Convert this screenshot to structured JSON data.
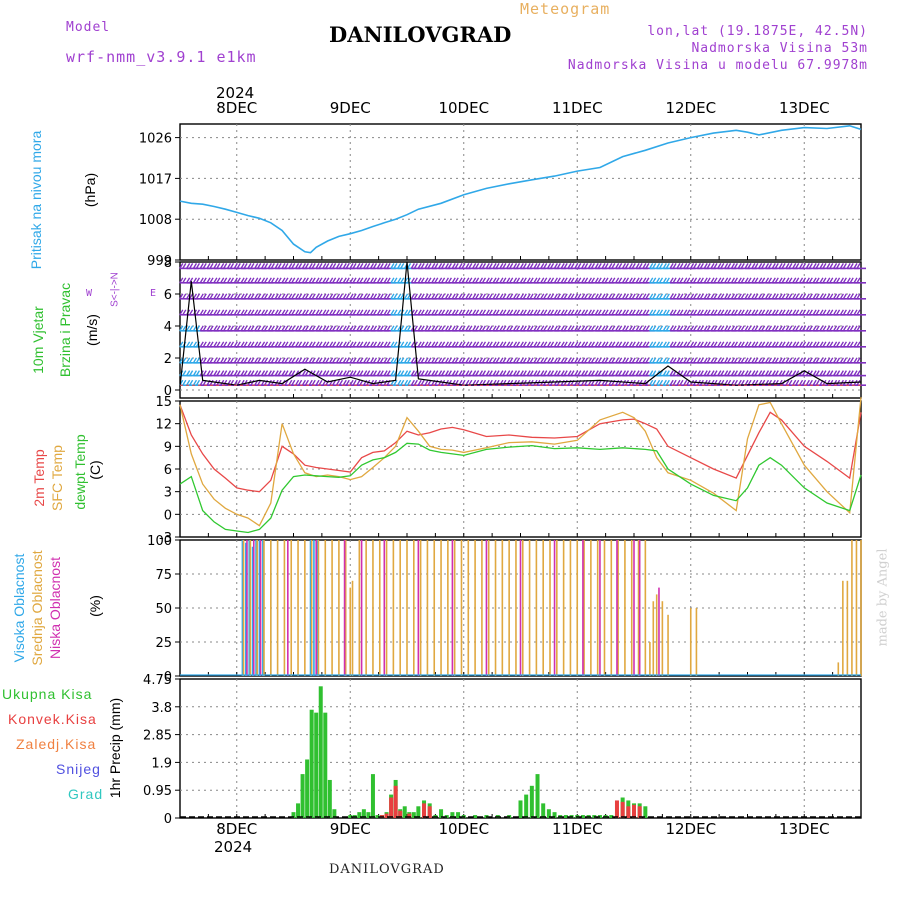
{
  "header": {
    "model_label": "Model",
    "model_name": "wrf-nmm_v3.9.1 e1km",
    "title": "DANILOVGRAD",
    "meteogram": "Meteogram",
    "coords": "lon,lat (19.1875E, 42.5N)",
    "elevation": "Nadmorska Visina 53m",
    "model_elevation": "Nadmorska Visina u modelu 67.9978m"
  },
  "footer": {
    "station": "DANILOVGRAD",
    "watermark": "made by Angel"
  },
  "x_axis": {
    "year": "2024",
    "days": [
      "8DEC",
      "9DEC",
      "10DEC",
      "11DEC",
      "12DEC",
      "13DEC"
    ],
    "day_offsets": [
      0,
      1,
      2,
      3,
      4,
      5
    ],
    "start_offset": -0.5,
    "end_offset": 5.5
  },
  "colors": {
    "pressure": "#30a8e8",
    "t2m": "#e84848",
    "tsfc": "#e0a840",
    "dewpt": "#30c830",
    "high_cloud": "#30a8e8",
    "mid_cloud": "#e0a840",
    "low_cloud": "#d030b0",
    "total_precip": "#30c030",
    "conv_precip": "#e84040",
    "frozen": "#f08040",
    "snow": "#5050e0",
    "hail": "#30c8c0",
    "wind_barb": "#8030c0",
    "wind_alt": "#30a8e8",
    "wind_speed": "#000000"
  },
  "panels": {
    "pressure": {
      "label1": "Pritisak na nivou mora",
      "label2": "(hPa)"
    },
    "wind": {
      "label1": "10m Vjetar",
      "label2": "Brzina i Pravac",
      "label3": "(m/s)",
      "compass_s": "S",
      "compass_n": "N",
      "compass_w": "W",
      "compass_e": "E",
      "compass_dir": "<-|->"
    },
    "temp": {
      "label1": "2m Temp",
      "label2": "SFC Temp",
      "label3": "dewpt Temp",
      "label4": "(C)"
    },
    "cloud": {
      "label1": "Visoka Oblacnost",
      "label2": "Srednja Oblacnost",
      "label3": "Niska Oblacnost",
      "label4": "(%)"
    },
    "precip": {
      "label1": "1hr Precip (mm)",
      "legend": [
        "Ukupna Kisa",
        "Konvek.Kisa",
        "Zaledj.Kisa",
        "Snijeg",
        "Grad"
      ]
    }
  },
  "chart_data": [
    {
      "type": "line",
      "title": "",
      "ylabel": "(hPa)",
      "ylim": [
        999,
        1029
      ],
      "yticks": [
        999,
        1008,
        1017,
        1026
      ],
      "x": [
        -0.5,
        -0.4,
        -0.3,
        -0.2,
        -0.1,
        0,
        0.1,
        0.2,
        0.3,
        0.4,
        0.5,
        0.6,
        0.65,
        0.7,
        0.8,
        0.9,
        1.0,
        1.1,
        1.2,
        1.3,
        1.4,
        1.5,
        1.6,
        1.8,
        2.0,
        2.2,
        2.4,
        2.6,
        2.8,
        3.0,
        3.2,
        3.4,
        3.6,
        3.8,
        4.0,
        4.2,
        4.4,
        4.5,
        4.6,
        4.8,
        5.0,
        5.2,
        5.4,
        5.5
      ],
      "series": [
        {
          "values": [
            1012,
            1011.5,
            1011.3,
            1010.8,
            1010.2,
            1009.5,
            1008.8,
            1008.2,
            1007.2,
            1005.5,
            1002.5,
            1000.8,
            1000.6,
            1001.8,
            1003.2,
            1004.2,
            1004.8,
            1005.5,
            1006.4,
            1007.2,
            1008,
            1009,
            1010.2,
            1011.5,
            1013.4,
            1014.8,
            1015.8,
            1016.7,
            1017.5,
            1018.6,
            1019.4,
            1021.8,
            1023.2,
            1024.8,
            1026,
            1027,
            1027.6,
            1027.2,
            1026.6,
            1027.6,
            1028.2,
            1028,
            1028.6,
            1027.8
          ]
        }
      ]
    },
    {
      "type": "line",
      "title": "",
      "ylabel": "(m/s)",
      "ylim": [
        -0.5,
        8
      ],
      "yticks": [
        0,
        2,
        4,
        6,
        8
      ],
      "barb_rows": [
        0.3,
        0.9,
        1.7,
        2.7,
        3.7,
        4.7,
        5.7,
        6.7,
        7.6
      ],
      "x": [
        -0.5,
        -0.4,
        -0.3,
        -0.2,
        0,
        0.2,
        0.4,
        0.6,
        0.8,
        1.0,
        1.2,
        1.4,
        1.5,
        1.6,
        1.8,
        2.0,
        2.4,
        2.8,
        3.2,
        3.6,
        3.8,
        4.0,
        4.4,
        4.8,
        5.0,
        5.2,
        5.5
      ],
      "series": [
        {
          "name": "speed",
          "values": [
            0.2,
            6.8,
            0.6,
            0.5,
            0.3,
            0.6,
            0.4,
            1.3,
            0.5,
            0.8,
            0.4,
            0.6,
            8,
            0.7,
            0.5,
            0.3,
            0.4,
            0.5,
            0.6,
            0.4,
            1.5,
            0.5,
            0.3,
            0.4,
            1.2,
            0.4,
            0.5
          ]
        }
      ]
    },
    {
      "type": "line",
      "title": "",
      "ylabel": "(C)",
      "ylim": [
        -3,
        15
      ],
      "yticks": [
        -3,
        0,
        3,
        6,
        9,
        12,
        15
      ],
      "x": [
        -0.5,
        -0.4,
        -0.3,
        -0.2,
        -0.1,
        0,
        0.1,
        0.2,
        0.3,
        0.4,
        0.5,
        0.6,
        0.7,
        0.8,
        0.9,
        1.0,
        1.1,
        1.2,
        1.3,
        1.4,
        1.5,
        1.6,
        1.7,
        1.8,
        1.9,
        2.0,
        2.2,
        2.4,
        2.6,
        2.8,
        3.0,
        3.2,
        3.4,
        3.5,
        3.6,
        3.7,
        3.8,
        4.0,
        4.2,
        4.4,
        4.5,
        4.6,
        4.7,
        4.8,
        5.0,
        5.2,
        5.4,
        5.5
      ],
      "series": [
        {
          "name": "2m",
          "values": [
            14.5,
            10.5,
            8,
            6,
            4.8,
            3.5,
            3.2,
            3,
            4.5,
            9,
            8,
            6.5,
            6.2,
            6,
            5.8,
            5.6,
            7.5,
            8.2,
            8.4,
            9.5,
            11,
            10.5,
            10.8,
            11.3,
            11.5,
            11.2,
            10.3,
            10.5,
            10.2,
            10.1,
            10.3,
            12,
            12.5,
            12.6,
            12,
            11.3,
            9,
            7.5,
            6,
            4.8,
            7.8,
            10.8,
            13.5,
            12.5,
            9,
            7,
            4.8,
            13.5
          ]
        },
        {
          "name": "sfc",
          "values": [
            14.5,
            8,
            4,
            2,
            0.8,
            0,
            -0.5,
            -1.5,
            1.5,
            12,
            8,
            5.5,
            5,
            5.2,
            5,
            4.6,
            5,
            6.2,
            7.5,
            9,
            12.8,
            11,
            9,
            8.6,
            8.5,
            8.2,
            8.8,
            9.5,
            9.6,
            9.3,
            9.8,
            12.5,
            13.5,
            12.8,
            11,
            7.5,
            5.5,
            4.5,
            2.8,
            0.5,
            10,
            14.5,
            14.8,
            12,
            6.5,
            3,
            0.2,
            15.5
          ]
        },
        {
          "name": "dewpt",
          "values": [
            4,
            5,
            0.5,
            -1,
            -2,
            -2.2,
            -2.4,
            -2,
            -0.5,
            3.2,
            5,
            5.2,
            5.1,
            5,
            4.9,
            5.1,
            6.5,
            7.2,
            7.5,
            8.2,
            9.4,
            9.3,
            8.5,
            8.2,
            8,
            7.8,
            8.6,
            8.9,
            9.1,
            8.7,
            8.8,
            8.6,
            8.8,
            8.7,
            8.6,
            8.4,
            6,
            4,
            2.5,
            1.8,
            3.5,
            6.5,
            7.5,
            6.5,
            3.5,
            1.5,
            0.5,
            5.2
          ]
        }
      ]
    },
    {
      "type": "bar",
      "title": "",
      "ylabel": "(%)",
      "ylim": [
        0,
        100
      ],
      "yticks": [
        0,
        25,
        50,
        75,
        100
      ],
      "series": [
        {
          "name": "high",
          "x": [
            0.05,
            0.08,
            0.11,
            0.14,
            0.17,
            0.2,
            0.23,
            0.3,
            0.65,
            0.68,
            0.71
          ],
          "values": [
            100,
            98,
            100,
            95,
            100,
            100,
            100,
            100,
            100,
            100,
            100
          ]
        },
        {
          "name": "mid",
          "x": [
            0.06,
            0.12,
            0.18,
            0.24,
            0.3,
            0.36,
            0.42,
            0.48,
            0.54,
            0.6,
            0.66,
            0.72,
            0.78,
            0.84,
            0.9,
            0.96,
            1.0,
            1.02,
            1.08,
            1.14,
            1.2,
            1.26,
            1.32,
            1.38,
            1.44,
            1.5,
            1.56,
            1.62,
            1.68,
            1.74,
            1.8,
            1.86,
            1.92,
            1.98,
            2.04,
            2.1,
            2.16,
            2.22,
            2.28,
            2.34,
            2.4,
            2.46,
            2.52,
            2.58,
            2.64,
            2.7,
            2.76,
            2.82,
            2.88,
            2.94,
            3.0,
            3.06,
            3.12,
            3.18,
            3.24,
            3.3,
            3.36,
            3.42,
            3.48,
            3.54,
            3.6,
            3.64,
            3.67,
            3.7,
            3.75,
            3.8,
            4.0,
            4.05,
            5.3,
            5.34,
            5.38,
            5.42,
            5.46,
            5.5
          ],
          "values": [
            100,
            100,
            100,
            100,
            100,
            100,
            100,
            100,
            100,
            100,
            100,
            100,
            100,
            100,
            100,
            100,
            65,
            70,
            100,
            100,
            100,
            100,
            100,
            100,
            100,
            100,
            100,
            100,
            100,
            100,
            100,
            100,
            100,
            100,
            100,
            100,
            100,
            100,
            100,
            100,
            100,
            100,
            100,
            100,
            100,
            100,
            100,
            100,
            100,
            100,
            100,
            100,
            100,
            100,
            100,
            100,
            100,
            100,
            100,
            100,
            100,
            25,
            55,
            60,
            55,
            45,
            50,
            50,
            10,
            70,
            70,
            100,
            100,
            100
          ]
        },
        {
          "name": "low",
          "x": [
            0.09,
            0.15,
            0.21,
            0.45,
            0.7,
            0.95,
            1.1,
            1.3,
            1.6,
            1.9,
            2.2,
            2.5,
            2.8,
            3.05,
            3.2,
            3.35,
            3.5,
            3.55,
            3.72
          ],
          "values": [
            100,
            100,
            100,
            100,
            100,
            100,
            100,
            100,
            100,
            100,
            100,
            100,
            100,
            100,
            100,
            100,
            100,
            100,
            65
          ]
        }
      ]
    },
    {
      "type": "bar",
      "title": "",
      "ylabel": "1hr Precip (mm)",
      "ylim": [
        0,
        4.75
      ],
      "yticks": [
        0,
        0.95,
        1.9,
        2.85,
        3.8,
        4.75
      ],
      "series": [
        {
          "name": "total",
          "x": [
            0.5,
            0.54,
            0.58,
            0.62,
            0.66,
            0.7,
            0.74,
            0.78,
            0.82,
            0.86,
            1.0,
            1.04,
            1.08,
            1.12,
            1.16,
            1.2,
            1.24,
            1.28,
            1.32,
            1.36,
            1.4,
            1.44,
            1.48,
            1.52,
            1.56,
            1.6,
            1.65,
            1.7,
            1.75,
            1.8,
            1.85,
            1.9,
            1.95,
            2.0,
            2.1,
            2.2,
            2.3,
            2.4,
            2.5,
            2.55,
            2.6,
            2.65,
            2.7,
            2.75,
            2.8,
            2.85,
            2.9,
            2.95,
            3.0,
            3.05,
            3.1,
            3.15,
            3.2,
            3.25,
            3.3,
            3.35,
            3.4,
            3.45,
            3.5,
            3.55,
            3.6
          ],
          "values": [
            0.2,
            0.5,
            1.5,
            2,
            3.7,
            3.6,
            4.5,
            3.6,
            1.3,
            0.3,
            0.1,
            0.1,
            0.2,
            0.3,
            0.2,
            1.5,
            0.1,
            0.1,
            0.2,
            0.8,
            1.3,
            0.3,
            0.4,
            0.2,
            0.2,
            0.4,
            0.6,
            0.5,
            0.1,
            0.3,
            0.1,
            0.2,
            0.2,
            0.1,
            0.1,
            0.1,
            0.1,
            0.1,
            0.6,
            0.8,
            1.1,
            1.5,
            0.5,
            0.3,
            0.2,
            0.1,
            0.1,
            0.1,
            0.1,
            0.1,
            0.1,
            0.1,
            0.1,
            0.1,
            0.1,
            0.2,
            0.7,
            0.6,
            0.5,
            0.5,
            0.4
          ]
        },
        {
          "name": "convective",
          "x": [
            1.28,
            1.32,
            1.36,
            1.4,
            1.44,
            1.52,
            1.65,
            1.7,
            3.35,
            3.4,
            3.45,
            3.5,
            3.55
          ],
          "values": [
            0.1,
            0.15,
            0.7,
            1.1,
            0.25,
            0.15,
            0.5,
            0.4,
            0.6,
            0.55,
            0.4,
            0.45,
            0.4
          ]
        }
      ]
    }
  ]
}
